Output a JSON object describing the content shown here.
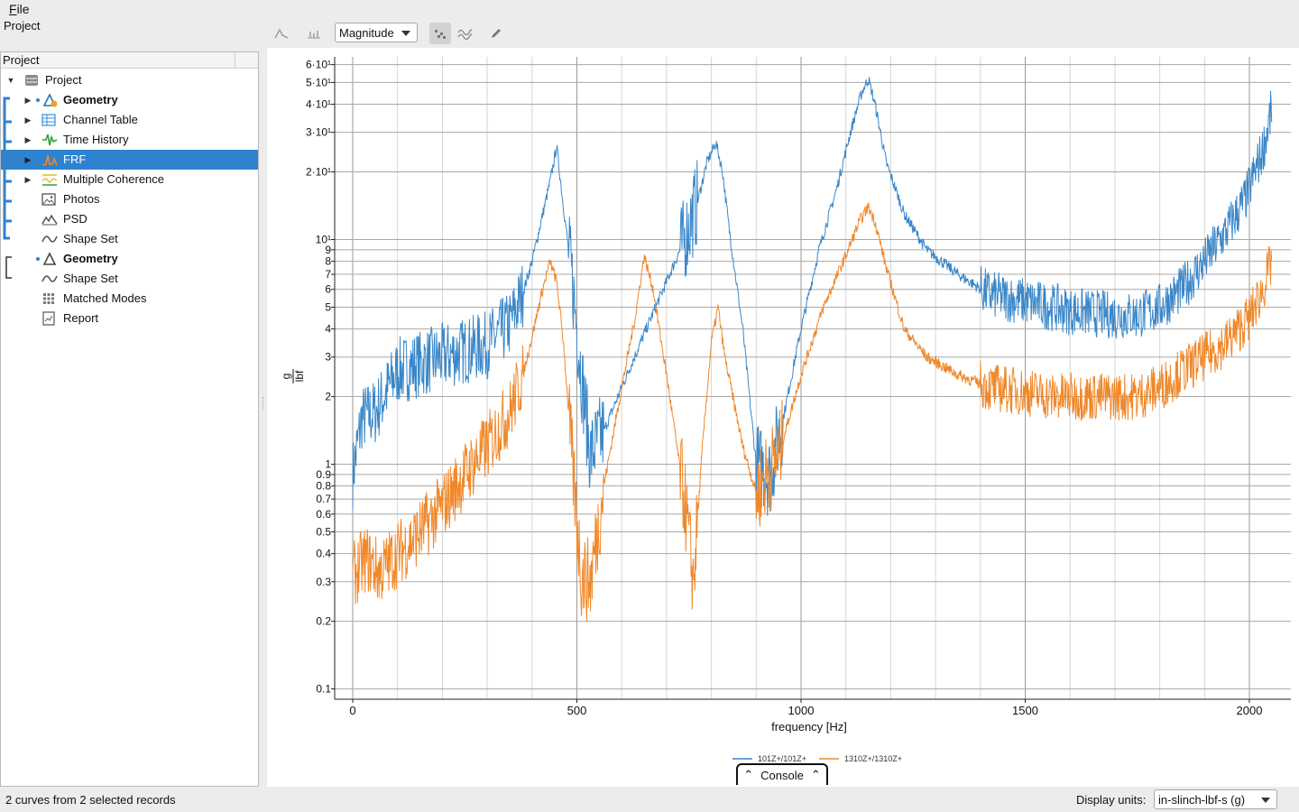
{
  "menubar": {
    "file": "File"
  },
  "project_label": "Project",
  "panel": {
    "header": "Project",
    "items": [
      {
        "label": "Project",
        "icon": "database-icon",
        "bold": false,
        "expanded": true
      },
      {
        "label": "Geometry",
        "icon": "geometry-icon",
        "bold": true
      },
      {
        "label": "Channel Table",
        "icon": "table-icon",
        "bold": false
      },
      {
        "label": "Time History",
        "icon": "time-history-icon",
        "bold": false
      },
      {
        "label": "FRF",
        "icon": "frf-icon",
        "bold": false,
        "selected": true
      },
      {
        "label": "Multiple Coherence",
        "icon": "coherence-icon",
        "bold": false
      },
      {
        "label": "Photos",
        "icon": "photo-icon",
        "bold": false
      },
      {
        "label": "PSD",
        "icon": "psd-icon",
        "bold": false
      },
      {
        "label": "Shape Set",
        "icon": "shape-set-icon",
        "bold": false
      },
      {
        "label": "Geometry",
        "icon": "geometry-icon",
        "bold": true
      },
      {
        "label": "Shape Set",
        "icon": "shape-set-icon",
        "bold": false
      },
      {
        "label": "Matched Modes",
        "icon": "matched-modes-icon",
        "bold": false
      },
      {
        "label": "Report",
        "icon": "report-icon",
        "bold": false
      }
    ]
  },
  "toolbar": {
    "mode_dropdown": "Magnitude"
  },
  "console": {
    "label": "Console"
  },
  "status": {
    "text": "2 curves from 2 selected records"
  },
  "units": {
    "label": "Display units:",
    "value": "in-slinch-lbf-s (g)"
  },
  "colors": {
    "series1": "#3a87c9",
    "series2": "#f0882a",
    "selection": "#2f82ce"
  },
  "chart_data": {
    "type": "line",
    "xlabel": "frequency [Hz]",
    "ylabel_num": "g",
    "ylabel_den": "lbf",
    "xscale": "linear",
    "yscale": "log",
    "xlim": [
      0,
      2050
    ],
    "ylim": [
      0.09,
      65
    ],
    "x_ticks": [
      0,
      500,
      1000,
      1500,
      2000
    ],
    "x_tick_labels": [
      "0",
      "500",
      "1000",
      "1500",
      "2000"
    ],
    "y_ticks": [
      {
        "v": 0.1,
        "label": "0.1"
      },
      {
        "v": 0.2,
        "label": "0.2"
      },
      {
        "v": 0.3,
        "label": "0.3"
      },
      {
        "v": 0.4,
        "label": "0.4"
      },
      {
        "v": 0.5,
        "label": "0.5"
      },
      {
        "v": 0.6,
        "label": "0.6"
      },
      {
        "v": 0.7,
        "label": "0.7"
      },
      {
        "v": 0.8,
        "label": "0.8"
      },
      {
        "v": 0.9,
        "label": "0.9"
      },
      {
        "v": 1,
        "label": "1"
      },
      {
        "v": 2,
        "label": "2"
      },
      {
        "v": 3,
        "label": "3"
      },
      {
        "v": 4,
        "label": "4"
      },
      {
        "v": 5,
        "label": "5"
      },
      {
        "v": 6,
        "label": "6"
      },
      {
        "v": 7,
        "label": "7"
      },
      {
        "v": 8,
        "label": "8"
      },
      {
        "v": 9,
        "label": "9"
      },
      {
        "v": 10,
        "label": "10¹"
      },
      {
        "v": 20,
        "label": "2·10¹"
      },
      {
        "v": 30,
        "label": "3·10¹"
      },
      {
        "v": 40,
        "label": "4·10¹"
      },
      {
        "v": 50,
        "label": "5·10¹"
      },
      {
        "v": 60,
        "label": "6·10¹"
      }
    ],
    "grid": true,
    "legend_position": "bottom-center",
    "series": [
      {
        "name": "101Z+/101Z+",
        "color": "#3a87c9",
        "x": [
          0,
          20,
          50,
          100,
          150,
          200,
          250,
          300,
          350,
          380,
          400,
          420,
          440,
          455,
          470,
          490,
          510,
          530,
          560,
          600,
          650,
          700,
          740,
          770,
          790,
          810,
          825,
          840,
          870,
          900,
          930,
          960,
          1000,
          1040,
          1080,
          1110,
          1135,
          1150,
          1165,
          1190,
          1230,
          1280,
          1350,
          1420,
          1500,
          1560,
          1600,
          1650,
          1700,
          1750,
          1800,
          1850,
          1900,
          1950,
          1990,
          2030,
          2050
        ],
        "y": [
          0.9,
          1.6,
          1.7,
          2.6,
          2.8,
          3.0,
          3.2,
          3.4,
          4.2,
          5.8,
          8.0,
          12,
          18,
          26,
          14,
          6.5,
          2.5,
          1.1,
          1.4,
          2.2,
          3.8,
          6.5,
          10,
          15,
          22,
          27,
          20,
          11,
          4.0,
          1.0,
          0.9,
          1.6,
          4.0,
          9.0,
          17,
          30,
          45,
          52,
          40,
          22,
          13,
          9.0,
          7.0,
          5.7,
          5.3,
          5.0,
          4.8,
          4.7,
          4.6,
          4.6,
          5.0,
          6.0,
          8.0,
          11,
          15,
          25,
          38
        ]
      },
      {
        "name": "1310Z+/1310Z+",
        "color": "#f0882a",
        "x": [
          0,
          30,
          60,
          100,
          150,
          200,
          250,
          300,
          350,
          380,
          400,
          420,
          440,
          455,
          470,
          490,
          510,
          530,
          560,
          600,
          630,
          650,
          670,
          700,
          740,
          760,
          780,
          800,
          815,
          830,
          870,
          900,
          950,
          1000,
          1050,
          1100,
          1130,
          1150,
          1165,
          1190,
          1230,
          1280,
          1350,
          1420,
          1500,
          1560,
          1600,
          1650,
          1700,
          1750,
          1800,
          1850,
          1900,
          1950,
          2000,
          2030,
          2050
        ],
        "y": [
          0.32,
          0.38,
          0.33,
          0.4,
          0.5,
          0.65,
          0.9,
          1.2,
          1.7,
          2.5,
          3.7,
          5.6,
          8.0,
          6.5,
          3.5,
          1.0,
          0.32,
          0.3,
          0.8,
          2.2,
          4.5,
          8.5,
          6.0,
          2.5,
          0.7,
          0.3,
          1.2,
          3.5,
          5.0,
          3.0,
          1.2,
          0.75,
          1.1,
          2.5,
          5.0,
          8.5,
          12,
          14,
          12,
          7.5,
          4.0,
          3.0,
          2.5,
          2.2,
          2.1,
          2.0,
          2.0,
          2.0,
          2.0,
          2.0,
          2.2,
          2.6,
          3.0,
          3.5,
          4.5,
          6.0,
          8.0
        ]
      }
    ]
  }
}
